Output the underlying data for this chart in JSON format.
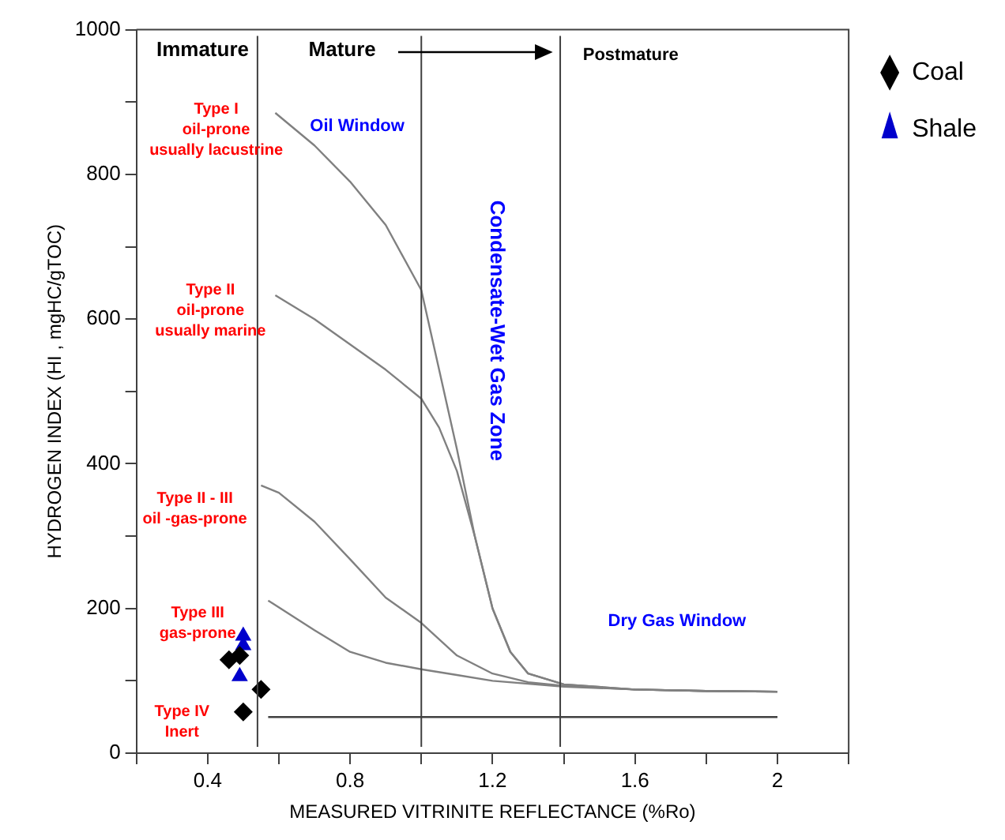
{
  "chart_data": {
    "type": "scatter",
    "xlabel": "MEASURED VITRINITE REFLECTANCE (%Ro)",
    "ylabel": "HYDROGEN INDEX (HI , mgHC/gTOC)",
    "xlim": [
      0.2,
      2.2
    ],
    "xticks": [
      {
        "value": 0.2,
        "label": null
      },
      0.4,
      {
        "value": 0.6,
        "label": null
      },
      0.8,
      {
        "value": 1.0,
        "label": null
      },
      1.2,
      {
        "value": 1.4,
        "label": null
      },
      1.6,
      {
        "value": 1.8,
        "label": null
      },
      2,
      {
        "value": 2.2,
        "label": null
      }
    ],
    "ylim": [
      0,
      1000
    ],
    "yticks": [
      0,
      {
        "value": 100,
        "label": null
      },
      200,
      {
        "value": 300,
        "label": null
      },
      400,
      {
        "value": 500,
        "label": null
      },
      600,
      {
        "value": 700,
        "label": null
      },
      800,
      {
        "value": 900,
        "label": null
      },
      1000
    ],
    "grid": false,
    "legend": "right",
    "series": [
      {
        "name": "Coal",
        "type": "scatter",
        "color": "#000000",
        "marker": "diamond",
        "x": [
          0.46,
          0.49,
          0.55,
          0.5
        ],
        "values": [
          129,
          135,
          88,
          57
        ]
      },
      {
        "name": "Shale",
        "type": "scatter",
        "color": "#0000cc",
        "marker": "triangle",
        "x": [
          0.5,
          0.5,
          0.49
        ],
        "values": [
          162,
          149,
          106
        ]
      },
      {
        "type": "line",
        "color": "#808080",
        "marker": "none",
        "x": [
          0.59,
          0.7,
          0.8,
          0.9,
          1.0,
          1.05,
          1.1,
          1.15,
          1.2,
          1.25,
          1.3,
          1.4,
          1.6,
          1.8,
          2.0
        ],
        "values": [
          885,
          840,
          790,
          730,
          640,
          530,
          420,
          300,
          200,
          140,
          110,
          95,
          88,
          86,
          85
        ]
      },
      {
        "type": "line",
        "color": "#808080",
        "marker": "none",
        "x": [
          0.59,
          0.7,
          0.8,
          0.9,
          1.0,
          1.05,
          1.1,
          1.15,
          1.2,
          1.25,
          1.3,
          1.4,
          1.6,
          1.8,
          2.0
        ],
        "values": [
          633,
          600,
          565,
          530,
          490,
          450,
          390,
          300,
          200,
          140,
          110,
          95,
          88,
          86,
          85
        ]
      },
      {
        "type": "line",
        "color": "#808080",
        "marker": "none",
        "x": [
          0.55,
          0.6,
          0.7,
          0.8,
          0.9,
          1.0,
          1.1,
          1.2,
          1.3,
          1.4,
          1.6,
          1.8,
          2.0
        ],
        "values": [
          370,
          360,
          320,
          268,
          215,
          180,
          135,
          110,
          98,
          93,
          88,
          86,
          85
        ]
      },
      {
        "type": "line",
        "color": "#808080",
        "marker": "none",
        "x": [
          0.57,
          0.7,
          0.8,
          0.9,
          1.0,
          1.1,
          1.2,
          1.4,
          1.6,
          1.8,
          2.0
        ],
        "values": [
          211,
          170,
          140,
          125,
          116,
          108,
          100,
          92,
          88,
          86,
          85
        ]
      },
      {
        "type": "line",
        "color": "#404040",
        "marker": "none",
        "x": [
          0.57,
          2.0
        ],
        "values": [
          50,
          50
        ]
      }
    ],
    "ref_lines": [
      {
        "axis": "x",
        "value": 0.54,
        "color": "#404040"
      },
      {
        "axis": "x",
        "value": 1.0,
        "color": "#404040"
      },
      {
        "axis": "x",
        "value": 1.39,
        "color": "#404040"
      }
    ],
    "annotations": [
      "Immature",
      "Mature",
      "Postmature",
      "Oil Window",
      "Type I\noil-prone\nusually lacustrine",
      "Type II\noil-prone\nusually marine",
      "Type II - III\noil -gas-prone",
      "Type III\ngas-prone",
      "Type IV\nInert",
      "Dry Gas Window",
      "Condensate-Wet Gas Zone"
    ]
  }
}
